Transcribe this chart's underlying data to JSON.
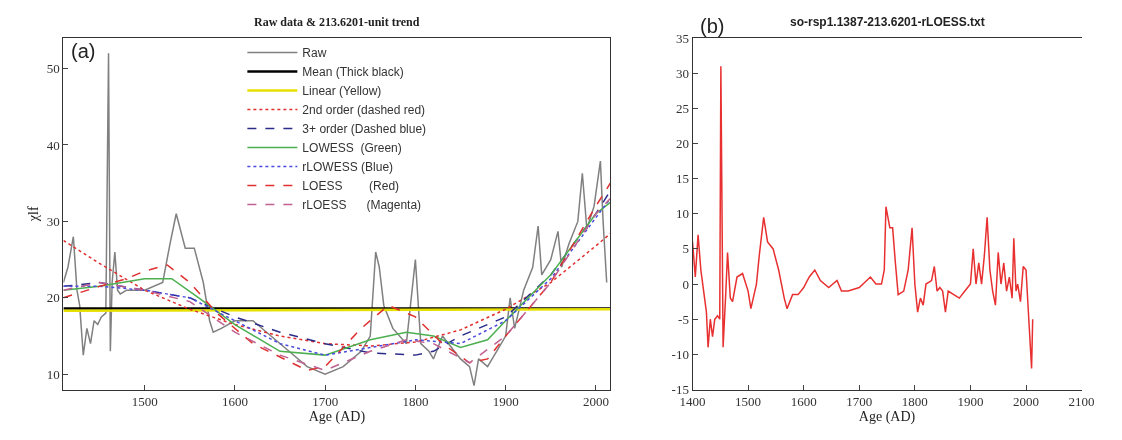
{
  "chart_data": [
    {
      "type": "line",
      "title": "Raw data & 213.6201-unit trend",
      "xlabel": "Age (AD)",
      "ylabel": "χlf",
      "annotations": [
        "(a)"
      ],
      "xlim": [
        1410,
        2016
      ],
      "xticks": [
        1500,
        1600,
        1700,
        1800,
        1900,
        2000
      ],
      "ylim": [
        8,
        54
      ],
      "yticks": [
        10,
        20,
        30,
        40,
        50
      ],
      "legend": "top",
      "marker": "none",
      "series": [
        {
          "name": "Raw",
          "color": "#808080",
          "line_style": "solid",
          "x": [
            1410,
            1415,
            1421,
            1425,
            1428,
            1432,
            1436,
            1440,
            1444,
            1448,
            1452,
            1457,
            1460,
            1462,
            1464,
            1467,
            1470,
            1473,
            1480,
            1500,
            1520,
            1528,
            1535,
            1545,
            1555,
            1565,
            1572,
            1576,
            1585,
            1600,
            1620,
            1640,
            1660,
            1680,
            1700,
            1720,
            1740,
            1750,
            1756,
            1760,
            1765,
            1775,
            1790,
            1800,
            1806,
            1815,
            1820,
            1830,
            1850,
            1860,
            1865,
            1870,
            1880,
            1890,
            1900,
            1905,
            1910,
            1920,
            1930,
            1936,
            1940,
            1950,
            1958,
            1962,
            1970,
            1980,
            1985,
            1990,
            1998,
            2005,
            2008,
            2012
          ],
          "values": [
            22,
            24,
            28,
            21,
            19,
            12.5,
            16,
            14,
            17,
            16.5,
            17.5,
            18,
            52,
            13,
            22,
            26,
            21,
            20.5,
            21,
            21,
            22,
            27,
            31,
            26.5,
            26.5,
            22,
            17,
            15.5,
            16,
            17,
            17,
            15,
            13,
            11,
            10,
            11,
            13,
            15,
            26,
            24,
            19,
            16,
            14,
            25,
            14,
            13,
            12,
            15,
            12,
            11,
            8.5,
            12,
            11,
            13,
            15,
            20,
            16,
            21,
            24,
            29.4,
            23,
            25,
            28.7,
            24,
            27,
            30,
            36.3,
            29,
            32,
            37.9,
            30,
            22
          ]
        },
        {
          "name": "Mean (Thick black)",
          "color": "#000000",
          "line_style": "solid",
          "x": [
            1410,
            2016
          ],
          "values": [
            18.6,
            18.6
          ]
        },
        {
          "name": "Linear (Yellow)",
          "color": "#e6e000",
          "line_style": "solid",
          "x": [
            1410,
            2016
          ],
          "values": [
            18.3,
            18.5
          ]
        },
        {
          "name": "2nd order (dashed red)",
          "color": "#e03030",
          "line_style": "dotted",
          "x": [
            1410,
            1450,
            1500,
            1550,
            1600,
            1650,
            1700,
            1750,
            1800,
            1850,
            1900,
            1950,
            2000,
            2016
          ],
          "values": [
            27.5,
            24.5,
            21,
            18.5,
            16.5,
            15,
            14,
            13.7,
            14.2,
            15.8,
            18.5,
            22,
            26.8,
            28.4
          ]
        },
        {
          "name": "3+ order (Dashed blue)",
          "color": "#2b2b8a",
          "line_style": "dashed",
          "x": [
            1410,
            1450,
            1500,
            1550,
            1600,
            1650,
            1700,
            1750,
            1800,
            1820,
            1850,
            1880,
            1900,
            1950,
            2000,
            2016
          ],
          "values": [
            21.5,
            22,
            21,
            20,
            17.5,
            15.5,
            14,
            12.8,
            12.5,
            13,
            15,
            16.5,
            17.5,
            23,
            31,
            34
          ]
        },
        {
          "name": "LOWESS  (Green)",
          "color": "#4caf50",
          "line_style": "solid",
          "x": [
            1410,
            1450,
            1500,
            1530,
            1560,
            1600,
            1650,
            1700,
            1750,
            1790,
            1820,
            1850,
            1880,
            1900,
            1950,
            2000,
            2016
          ],
          "values": [
            21,
            21.5,
            22.5,
            22.5,
            20,
            16.5,
            13,
            12.5,
            14.5,
            15.5,
            15,
            13.5,
            14.5,
            17,
            23,
            31,
            32.5
          ]
        },
        {
          "name": "rLOWESS (Blue)",
          "color": "#4a4adf",
          "line_style": "dotted",
          "x": [
            1410,
            1450,
            1500,
            1550,
            1600,
            1650,
            1700,
            1750,
            1800,
            1850,
            1900,
            1950,
            2000,
            2016
          ],
          "values": [
            21.5,
            21.5,
            21,
            20,
            17,
            14,
            12.5,
            13.5,
            14.5,
            14,
            17,
            22.5,
            30.5,
            33
          ]
        },
        {
          "name": "LOESS        (Red)",
          "color": "#e03030",
          "line_style": "dashed",
          "x": [
            1410,
            1450,
            1480,
            1500,
            1525,
            1550,
            1580,
            1620,
            1680,
            1700,
            1740,
            1770,
            1800,
            1830,
            1860,
            1880,
            1900,
            1950,
            2000,
            2016
          ],
          "values": [
            20,
            21.5,
            22.5,
            23.5,
            24.3,
            22,
            18,
            14,
            10.5,
            11,
            16,
            19,
            17.5,
            14,
            11.5,
            12,
            15,
            22,
            32,
            35
          ]
        },
        {
          "name": "rLOESS      (Magenta)",
          "color": "#c06090",
          "line_style": "dashed",
          "x": [
            1410,
            1450,
            1500,
            1550,
            1600,
            1650,
            1700,
            1750,
            1790,
            1820,
            1860,
            1900,
            1950,
            2000,
            2016
          ],
          "values": [
            21,
            22,
            21,
            19.5,
            15.5,
            12.5,
            10.5,
            13,
            14.5,
            14,
            11.5,
            15,
            22,
            31,
            33
          ]
        }
      ]
    },
    {
      "type": "line",
      "title": "so-rsp1.1387-213.6201-rLOESS.txt",
      "xlabel": "Age (AD)",
      "annotations": [
        "(b)"
      ],
      "xlim": [
        1400,
        2100
      ],
      "xticks": [
        1400,
        1500,
        1600,
        1700,
        1800,
        1900,
        2000,
        2100
      ],
      "ylim": [
        -15,
        35
      ],
      "yticks": [
        -15,
        -10,
        -5,
        0,
        5,
        10,
        15,
        20,
        25,
        30,
        35
      ],
      "marker": "none",
      "series": [
        {
          "color": "#e83030",
          "line_style": "solid",
          "x": [
            1400,
            1405,
            1410,
            1415,
            1420,
            1425,
            1428,
            1432,
            1436,
            1440,
            1445,
            1449,
            1451,
            1455,
            1460,
            1463,
            1468,
            1472,
            1480,
            1490,
            1500,
            1505,
            1515,
            1520,
            1528,
            1535,
            1545,
            1555,
            1565,
            1570,
            1580,
            1590,
            1600,
            1610,
            1620,
            1630,
            1645,
            1660,
            1668,
            1680,
            1700,
            1720,
            1730,
            1740,
            1745,
            1748,
            1755,
            1760,
            1765,
            1770,
            1780,
            1788,
            1795,
            1800,
            1805,
            1810,
            1815,
            1820,
            1830,
            1835,
            1840,
            1845,
            1850,
            1855,
            1860,
            1870,
            1880,
            1890,
            1900,
            1905,
            1910,
            1915,
            1920,
            1925,
            1930,
            1935,
            1940,
            1945,
            1950,
            1955,
            1960,
            1965,
            1970,
            1975,
            1978,
            1982,
            1985,
            1990,
            1995,
            2000,
            2005,
            2010,
            2012
          ],
          "values": [
            6,
            1,
            7,
            2,
            -1,
            -4,
            -9,
            -5,
            -7.5,
            -5,
            -4.5,
            -5,
            31,
            -9,
            -1,
            4.5,
            -2,
            -2.5,
            1,
            1.5,
            -1,
            -3.5,
            0,
            4,
            9.5,
            6,
            5,
            2,
            -2,
            -3.5,
            -1.5,
            -1.5,
            -0.5,
            1,
            2,
            0.5,
            -0.5,
            0.5,
            -1,
            -1,
            -0.5,
            1,
            0,
            0,
            2,
            11,
            8,
            8,
            3,
            -1.5,
            -1,
            2,
            8,
            0,
            -4,
            -2,
            -3,
            0,
            0.5,
            2.5,
            -1,
            -0.5,
            -1,
            -4,
            -1,
            -1.5,
            -2,
            -1,
            0,
            5,
            0,
            3,
            0,
            4,
            9.5,
            2,
            -1,
            -3,
            4.5,
            0,
            3,
            -1,
            1,
            -2,
            6.5,
            -1,
            0,
            -2.5,
            2.5,
            2,
            -5,
            -12,
            -5
          ]
        }
      ]
    }
  ]
}
